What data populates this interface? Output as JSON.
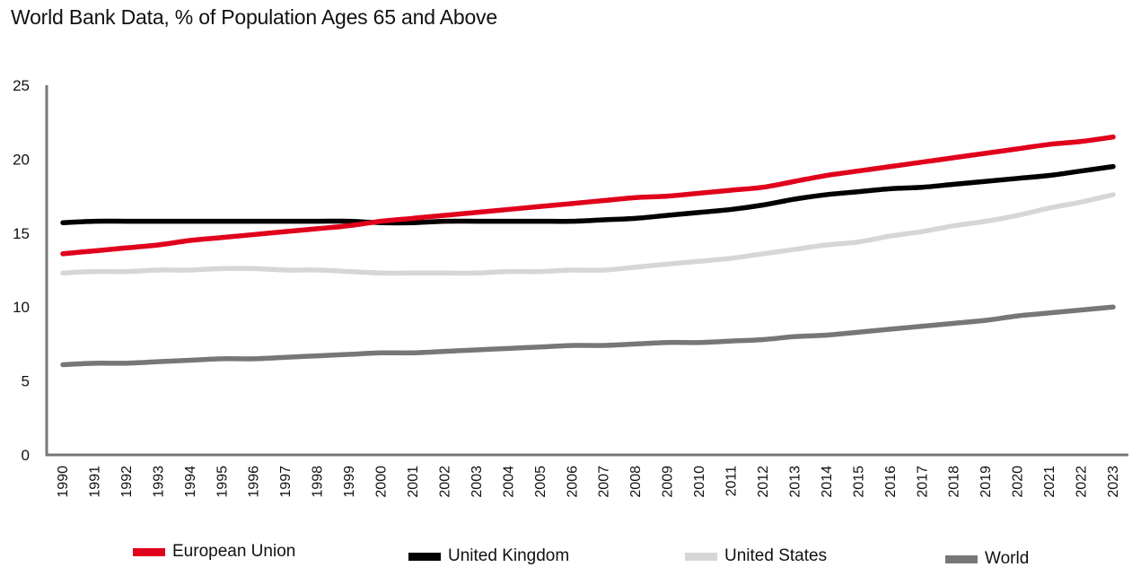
{
  "chart_data": {
    "type": "line",
    "title": "World Bank Data, % of Population Ages 65 and Above",
    "xlabel": "",
    "ylabel": "",
    "ylim": [
      0,
      25
    ],
    "yticks": [
      0,
      5,
      10,
      15,
      20,
      25
    ],
    "grid": false,
    "legend_position": "bottom",
    "x": [
      "1990",
      "1991",
      "1992",
      "1993",
      "1994",
      "1995",
      "1996",
      "1997",
      "1998",
      "1999",
      "2000",
      "2001",
      "2002",
      "2003",
      "2004",
      "2005",
      "2006",
      "2007",
      "2008",
      "2009",
      "2010",
      "2011",
      "2012",
      "2013",
      "2014",
      "2015",
      "2016",
      "2017",
      "2018",
      "2019",
      "2020",
      "2021",
      "2022",
      "2023"
    ],
    "series": [
      {
        "name": "European Union",
        "color": "#e0001b",
        "values": [
          13.6,
          13.8,
          14.0,
          14.2,
          14.5,
          14.7,
          14.9,
          15.1,
          15.3,
          15.5,
          15.8,
          16.0,
          16.2,
          16.4,
          16.6,
          16.8,
          17.0,
          17.2,
          17.4,
          17.5,
          17.7,
          17.9,
          18.1,
          18.5,
          18.9,
          19.2,
          19.5,
          19.8,
          20.1,
          20.4,
          20.7,
          21.0,
          21.2,
          21.5
        ]
      },
      {
        "name": "United Kingdom",
        "color": "#000000",
        "values": [
          15.7,
          15.8,
          15.8,
          15.8,
          15.8,
          15.8,
          15.8,
          15.8,
          15.8,
          15.8,
          15.7,
          15.7,
          15.8,
          15.8,
          15.8,
          15.8,
          15.8,
          15.9,
          16.0,
          16.2,
          16.4,
          16.6,
          16.9,
          17.3,
          17.6,
          17.8,
          18.0,
          18.1,
          18.3,
          18.5,
          18.7,
          18.9,
          19.2,
          19.5
        ]
      },
      {
        "name": "United States",
        "color": "#d6d6d6",
        "values": [
          12.3,
          12.4,
          12.4,
          12.5,
          12.5,
          12.6,
          12.6,
          12.5,
          12.5,
          12.4,
          12.3,
          12.3,
          12.3,
          12.3,
          12.4,
          12.4,
          12.5,
          12.5,
          12.7,
          12.9,
          13.1,
          13.3,
          13.6,
          13.9,
          14.2,
          14.4,
          14.8,
          15.1,
          15.5,
          15.8,
          16.2,
          16.7,
          17.1,
          17.6
        ]
      },
      {
        "name": "World",
        "color": "#777777",
        "values": [
          6.1,
          6.2,
          6.2,
          6.3,
          6.4,
          6.5,
          6.5,
          6.6,
          6.7,
          6.8,
          6.9,
          6.9,
          7.0,
          7.1,
          7.2,
          7.3,
          7.4,
          7.4,
          7.5,
          7.6,
          7.6,
          7.7,
          7.8,
          8.0,
          8.1,
          8.3,
          8.5,
          8.7,
          8.9,
          9.1,
          9.4,
          9.6,
          9.8,
          10.0
        ]
      }
    ]
  }
}
